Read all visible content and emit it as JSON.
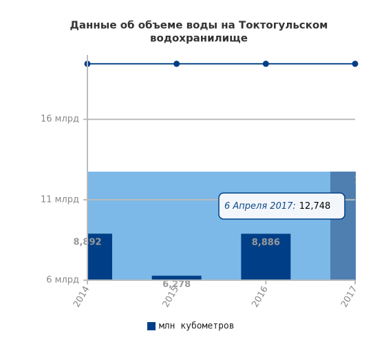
{
  "chart_data": {
    "type": "bar",
    "title": "Данные об объеме воды на Токтогульском",
    "subtitle": "водохранилище",
    "x": [
      2014,
      2015,
      2016,
      2017
    ],
    "xlim": [
      2014,
      2017
    ],
    "ylim": [
      6000,
      20000
    ],
    "yticks": [
      {
        "value": 6000,
        "label": "6 млрд"
      },
      {
        "value": 11000,
        "label": "11 млрд"
      },
      {
        "value": 16000,
        "label": "16 млрд"
      }
    ],
    "grid": true,
    "hover_index": 3,
    "tooltip_label": "6 Апреля 2017:",
    "series": [
      {
        "name": "млн кубометров",
        "color": "#003f87",
        "hover_color": "#4f7fb0",
        "band_color": "#7cb9e8",
        "values": [
          8892,
          6278,
          8886,
          12748
        ],
        "value_labels": [
          "8,892",
          "6,278",
          "8,886",
          "12,748"
        ]
      },
      {
        "type": "line",
        "color": "#0b4a8a",
        "values": [
          19450,
          19450,
          19450,
          19450
        ]
      },
      {
        "type": "line",
        "color": "#e8303a",
        "values": [
          6000,
          6000,
          6000,
          6000
        ]
      }
    ]
  }
}
